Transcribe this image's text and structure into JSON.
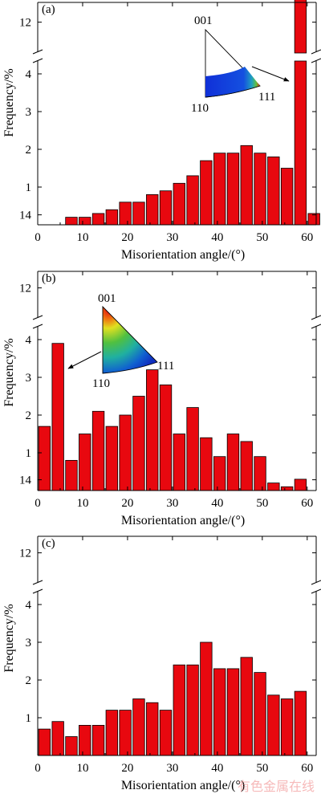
{
  "chart_data": [
    {
      "type": "bar",
      "panel_label": "(a)",
      "xlabel": "Misorientation angle/(°)",
      "ylabel": "Frequency/%",
      "xlim": [
        0,
        62
      ],
      "y_lower_range": [
        0,
        4.7
      ],
      "y_upper_range": [
        11.2,
        14
      ],
      "axis_break": true,
      "x_ticks": [
        0,
        10,
        20,
        30,
        40,
        50,
        60
      ],
      "y_ticks_lower": [
        1,
        2,
        3,
        4
      ],
      "y_ticks_upper": [
        12,
        14
      ],
      "bar_color": "#e8080f",
      "x": [
        7.5,
        10.5,
        13.5,
        16.5,
        19.5,
        22.5,
        25.5,
        28.5,
        31.5,
        34.5,
        37.5,
        40.5,
        43.5,
        46.5,
        49.5,
        52.5,
        55.5,
        58.5,
        61.5
      ],
      "values": [
        0.2,
        0.2,
        0.3,
        0.4,
        0.6,
        0.6,
        0.8,
        0.9,
        1.1,
        1.3,
        1.7,
        1.9,
        1.9,
        2.1,
        1.9,
        1.8,
        1.5,
        13.2,
        0.3
      ],
      "inset": {
        "labels": [
          "001",
          "110",
          "111"
        ],
        "arrow_target": "bar at ~59°"
      }
    },
    {
      "type": "bar",
      "panel_label": "(b)",
      "xlabel": "Misorientation angle/(°)",
      "ylabel": "Frequency/%",
      "xlim": [
        0,
        62
      ],
      "y_lower_range": [
        0,
        4.7
      ],
      "y_upper_range": [
        11.2,
        14
      ],
      "axis_break": true,
      "x_ticks": [
        0,
        10,
        20,
        30,
        40,
        50,
        60
      ],
      "y_ticks_lower": [
        1,
        2,
        3,
        4
      ],
      "y_ticks_upper": [
        12,
        14
      ],
      "bar_color": "#e8080f",
      "x": [
        1.5,
        4.5,
        7.5,
        10.5,
        13.5,
        16.5,
        19.5,
        22.5,
        25.5,
        28.5,
        31.5,
        34.5,
        37.5,
        40.5,
        43.5,
        46.5,
        49.5,
        52.5,
        55.5,
        58.5
      ],
      "values": [
        1.7,
        3.9,
        0.8,
        1.5,
        2.1,
        1.7,
        2.0,
        2.5,
        3.2,
        2.8,
        1.5,
        2.2,
        1.4,
        0.9,
        1.5,
        1.3,
        0.9,
        0.2,
        0.1,
        0.3
      ],
      "inset": {
        "labels": [
          "001",
          "110",
          "111"
        ],
        "arrow_target": "bar at ~4°"
      }
    },
    {
      "type": "bar",
      "panel_label": "(c)",
      "xlabel": "Misorientation angle/(°)",
      "ylabel": "Frequency/%",
      "xlim": [
        0,
        62
      ],
      "y_lower_range": [
        0,
        4.7
      ],
      "y_upper_range": [
        11.2,
        14
      ],
      "axis_break": true,
      "x_ticks": [
        0,
        10,
        20,
        30,
        40,
        50,
        60
      ],
      "y_ticks_lower": [
        1,
        2,
        3,
        4
      ],
      "y_ticks_upper": [
        12,
        14
      ],
      "bar_color": "#e8080f",
      "x": [
        1.5,
        4.5,
        7.5,
        10.5,
        13.5,
        16.5,
        19.5,
        22.5,
        25.5,
        28.5,
        31.5,
        34.5,
        37.5,
        40.5,
        43.5,
        46.5,
        49.5,
        52.5,
        55.5,
        58.5
      ],
      "values": [
        0.7,
        0.9,
        0.5,
        0.8,
        0.8,
        1.2,
        1.2,
        1.5,
        1.4,
        1.2,
        2.4,
        2.4,
        3.0,
        2.3,
        2.3,
        2.6,
        2.2,
        1.6,
        1.5,
        1.7
      ]
    }
  ],
  "watermark": "有色金属在线"
}
